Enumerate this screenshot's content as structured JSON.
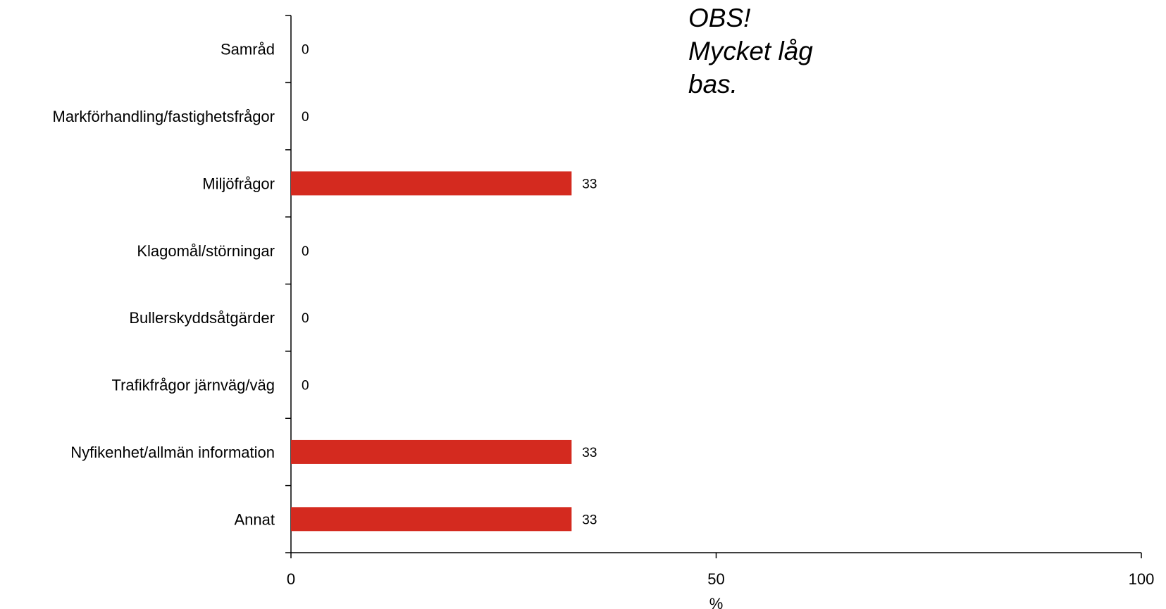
{
  "chart_data": {
    "type": "bar",
    "orientation": "horizontal",
    "categories": [
      "Samråd",
      "Markförhandling/fastighetsfrågor",
      "Miljöfrågor",
      "Klagomål/störningar",
      "Bullerskyddsåtgärder",
      "Trafikfrågor järnväg/väg",
      "Nyfikenhet/allmän information",
      "Annat"
    ],
    "values": [
      0,
      0,
      33,
      0,
      0,
      0,
      33,
      33
    ],
    "xlabel": "%",
    "xlim": [
      0,
      100
    ],
    "xticks": [
      0,
      50,
      100
    ],
    "grid": false,
    "bar_color": "#d42a1f",
    "annotation": [
      "OBS!",
      "Mycket låg",
      "bas."
    ]
  }
}
